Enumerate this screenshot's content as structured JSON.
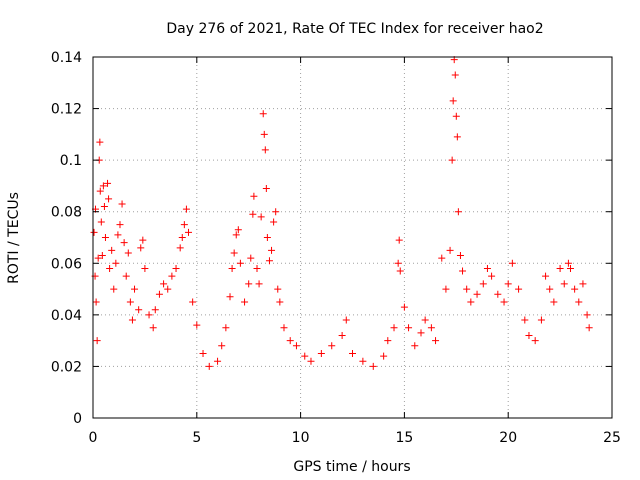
{
  "chart_data": {
    "type": "scatter",
    "title": "Day 276 of 2021, Rate Of TEC Index for receiver hao2",
    "xlabel": "GPS time / hours",
    "ylabel": "ROTI / TECUs",
    "xlim": [
      0,
      25
    ],
    "ylim": [
      0,
      0.14
    ],
    "xticks": [
      0,
      5,
      10,
      15,
      20,
      25
    ],
    "xtick_labels": [
      "0",
      "5",
      "10",
      "15",
      "20",
      "25"
    ],
    "yticks": [
      0,
      0.02,
      0.04,
      0.06,
      0.08,
      0.1,
      0.12,
      0.14
    ],
    "ytick_labels": [
      "0",
      "0.02",
      "0.04",
      "0.06",
      "0.08",
      "0.1",
      "0.12",
      "0.14"
    ],
    "grid": true,
    "marker": "+",
    "color": "#ff0000",
    "series": [
      {
        "name": "ROTI",
        "points": [
          [
            0.05,
            0.072
          ],
          [
            0.1,
            0.055
          ],
          [
            0.12,
            0.081
          ],
          [
            0.15,
            0.045
          ],
          [
            0.2,
            0.03
          ],
          [
            0.25,
            0.062
          ],
          [
            0.3,
            0.1
          ],
          [
            0.33,
            0.107
          ],
          [
            0.35,
            0.088
          ],
          [
            0.4,
            0.076
          ],
          [
            0.45,
            0.063
          ],
          [
            0.5,
            0.09
          ],
          [
            0.55,
            0.082
          ],
          [
            0.6,
            0.07
          ],
          [
            0.7,
            0.091
          ],
          [
            0.75,
            0.085
          ],
          [
            0.8,
            0.058
          ],
          [
            0.9,
            0.065
          ],
          [
            1.0,
            0.05
          ],
          [
            1.1,
            0.06
          ],
          [
            1.2,
            0.071
          ],
          [
            1.3,
            0.075
          ],
          [
            1.4,
            0.083
          ],
          [
            1.5,
            0.068
          ],
          [
            1.6,
            0.055
          ],
          [
            1.7,
            0.064
          ],
          [
            1.8,
            0.045
          ],
          [
            1.9,
            0.038
          ],
          [
            2.0,
            0.05
          ],
          [
            2.2,
            0.042
          ],
          [
            2.3,
            0.066
          ],
          [
            2.4,
            0.069
          ],
          [
            2.5,
            0.058
          ],
          [
            2.7,
            0.04
          ],
          [
            2.9,
            0.035
          ],
          [
            3.0,
            0.042
          ],
          [
            3.2,
            0.048
          ],
          [
            3.4,
            0.052
          ],
          [
            3.6,
            0.05
          ],
          [
            3.8,
            0.055
          ],
          [
            4.0,
            0.058
          ],
          [
            4.2,
            0.066
          ],
          [
            4.3,
            0.07
          ],
          [
            4.4,
            0.075
          ],
          [
            4.5,
            0.081
          ],
          [
            4.6,
            0.072
          ],
          [
            4.8,
            0.045
          ],
          [
            5.0,
            0.036
          ],
          [
            5.3,
            0.025
          ],
          [
            5.6,
            0.02
          ],
          [
            6.0,
            0.022
          ],
          [
            6.2,
            0.028
          ],
          [
            6.4,
            0.035
          ],
          [
            6.6,
            0.047
          ],
          [
            6.7,
            0.058
          ],
          [
            6.8,
            0.064
          ],
          [
            6.9,
            0.071
          ],
          [
            7.0,
            0.073
          ],
          [
            7.1,
            0.06
          ],
          [
            7.3,
            0.045
          ],
          [
            7.5,
            0.052
          ],
          [
            7.6,
            0.062
          ],
          [
            7.7,
            0.079
          ],
          [
            7.75,
            0.086
          ],
          [
            7.9,
            0.058
          ],
          [
            8.0,
            0.052
          ],
          [
            8.1,
            0.078
          ],
          [
            8.2,
            0.118
          ],
          [
            8.25,
            0.11
          ],
          [
            8.3,
            0.104
          ],
          [
            8.35,
            0.089
          ],
          [
            8.4,
            0.07
          ],
          [
            8.5,
            0.061
          ],
          [
            8.6,
            0.065
          ],
          [
            8.7,
            0.076
          ],
          [
            8.8,
            0.08
          ],
          [
            8.9,
            0.05
          ],
          [
            9.0,
            0.045
          ],
          [
            9.2,
            0.035
          ],
          [
            9.5,
            0.03
          ],
          [
            9.8,
            0.028
          ],
          [
            10.2,
            0.024
          ],
          [
            10.5,
            0.022
          ],
          [
            11.0,
            0.025
          ],
          [
            11.5,
            0.028
          ],
          [
            12.0,
            0.032
          ],
          [
            12.2,
            0.038
          ],
          [
            12.5,
            0.025
          ],
          [
            13.0,
            0.022
          ],
          [
            13.5,
            0.02
          ],
          [
            14.0,
            0.024
          ],
          [
            14.2,
            0.03
          ],
          [
            14.5,
            0.035
          ],
          [
            14.7,
            0.06
          ],
          [
            14.75,
            0.069
          ],
          [
            14.8,
            0.057
          ],
          [
            15.0,
            0.043
          ],
          [
            15.2,
            0.035
          ],
          [
            15.5,
            0.028
          ],
          [
            15.8,
            0.033
          ],
          [
            16.0,
            0.038
          ],
          [
            16.3,
            0.035
          ],
          [
            16.5,
            0.03
          ],
          [
            16.8,
            0.062
          ],
          [
            17.0,
            0.05
          ],
          [
            17.2,
            0.065
          ],
          [
            17.3,
            0.1
          ],
          [
            17.35,
            0.123
          ],
          [
            17.4,
            0.139
          ],
          [
            17.45,
            0.133
          ],
          [
            17.5,
            0.117
          ],
          [
            17.55,
            0.109
          ],
          [
            17.6,
            0.08
          ],
          [
            17.7,
            0.063
          ],
          [
            17.8,
            0.057
          ],
          [
            18.0,
            0.05
          ],
          [
            18.2,
            0.045
          ],
          [
            18.5,
            0.048
          ],
          [
            18.8,
            0.052
          ],
          [
            19.0,
            0.058
          ],
          [
            19.2,
            0.055
          ],
          [
            19.5,
            0.048
          ],
          [
            19.8,
            0.045
          ],
          [
            20.0,
            0.052
          ],
          [
            20.2,
            0.06
          ],
          [
            20.5,
            0.05
          ],
          [
            20.8,
            0.038
          ],
          [
            21.0,
            0.032
          ],
          [
            21.3,
            0.03
          ],
          [
            21.6,
            0.038
          ],
          [
            21.8,
            0.055
          ],
          [
            22.0,
            0.05
          ],
          [
            22.2,
            0.045
          ],
          [
            22.5,
            0.058
          ],
          [
            22.7,
            0.052
          ],
          [
            22.9,
            0.06
          ],
          [
            23.0,
            0.058
          ],
          [
            23.2,
            0.05
          ],
          [
            23.4,
            0.045
          ],
          [
            23.6,
            0.052
          ],
          [
            23.8,
            0.04
          ],
          [
            23.9,
            0.035
          ]
        ]
      }
    ]
  }
}
